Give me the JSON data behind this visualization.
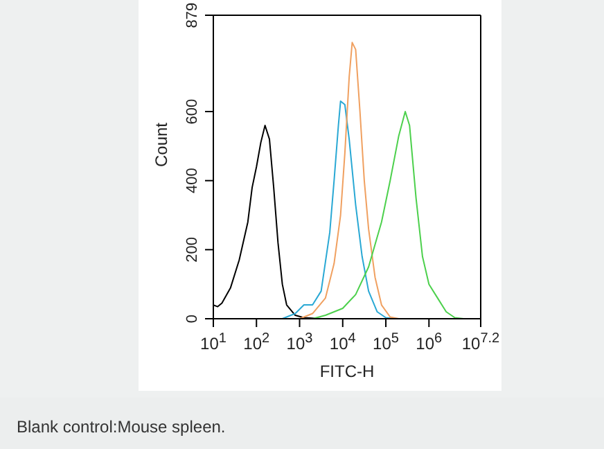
{
  "chart_data": {
    "type": "line",
    "xlabel": "FITC-H",
    "ylabel": "Count",
    "log": "x",
    "marker": "none",
    "line_style": "solid",
    "xlim": [
      10,
      15848932
    ],
    "ylim": [
      0,
      879
    ],
    "xticks": [
      {
        "value": 10,
        "label": "10$^{1}$"
      },
      {
        "value": 100,
        "label": "10$^{2}$"
      },
      {
        "value": 1000,
        "label": "10$^{3}$"
      },
      {
        "value": 10000,
        "label": "10$^{4}$"
      },
      {
        "value": 100000,
        "label": "10$^{5}$"
      },
      {
        "value": 1000000,
        "label": "10$^{6}$"
      },
      {
        "value": 15848932,
        "label": "10$^{7.2}$"
      }
    ],
    "yticks": [
      0,
      200,
      400,
      600,
      879
    ],
    "series": [
      {
        "color": "#000000",
        "x": [
          10,
          12.6,
          15.8,
          25.1,
          39.8,
          63.1,
          79.4,
          100,
          126,
          158,
          200,
          251,
          316,
          398,
          501,
          794,
          1259,
          3162
        ],
        "values": [
          40,
          35,
          45,
          90,
          170,
          280,
          380,
          440,
          510,
          560,
          520,
          380,
          220,
          100,
          40,
          10,
          3,
          0
        ]
      },
      {
        "color": "#29a8d4",
        "x": [
          398,
          794,
          1259,
          1995,
          3162,
          5012,
          6310,
          7943,
          8913,
          11220,
          14125,
          19953,
          28184,
          39811,
          63096,
          100000,
          158489
        ],
        "values": [
          0,
          15,
          40,
          40,
          80,
          250,
          400,
          560,
          630,
          620,
          520,
          330,
          180,
          80,
          20,
          3,
          0
        ]
      },
      {
        "color": "#f0a060",
        "x": [
          1000,
          1995,
          3981,
          6310,
          8913,
          11220,
          14125,
          16596,
          19953,
          25119,
          31623,
          39811,
          56234,
          79433,
          125893,
          199526
        ],
        "values": [
          0,
          15,
          60,
          160,
          300,
          480,
          700,
          800,
          780,
          600,
          400,
          260,
          120,
          40,
          5,
          0
        ]
      },
      {
        "color": "#4cd04c",
        "x": [
          1995,
          3981,
          10000,
          19953,
          39811,
          79433,
          125893,
          199526,
          281838,
          354813,
          501187,
          707946,
          1000000,
          1584893,
          2511886,
          3981072,
          6309573
        ],
        "values": [
          0,
          10,
          30,
          70,
          150,
          280,
          400,
          530,
          600,
          560,
          350,
          180,
          100,
          60,
          20,
          3,
          0
        ]
      }
    ],
    "annotations": [
      "Blank control:Mouse spleen."
    ]
  }
}
